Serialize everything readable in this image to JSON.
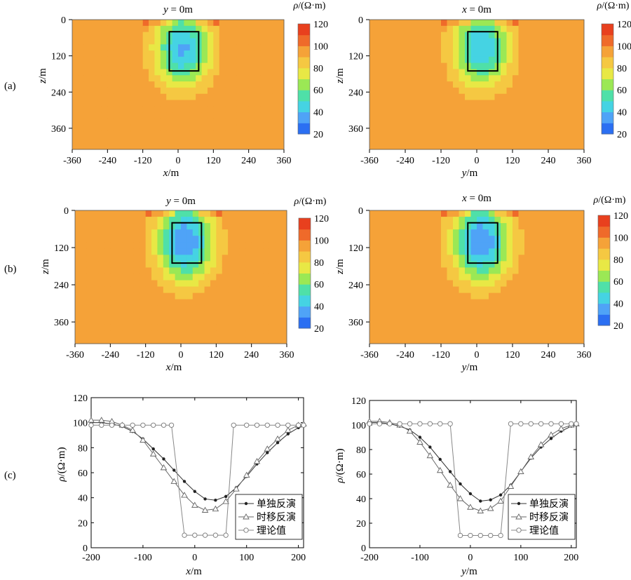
{
  "labels": {
    "row_a": "(a)",
    "row_b": "(b)",
    "row_c": "(c)"
  },
  "colormap": {
    "label": "ρ/(Ω·m)",
    "ticks": [
      "120",
      "100",
      "80",
      "60",
      "40",
      "20"
    ],
    "range": [
      20,
      120
    ],
    "colors": [
      "#2b6ff2",
      "#4fa3f7",
      "#45d3e3",
      "#4fe0a8",
      "#9be855",
      "#e8e845",
      "#f5c842",
      "#f5a238",
      "#ef6a2a",
      "#e8401e"
    ]
  },
  "chart_data": [
    {
      "id": "a-left",
      "type": "heatmap",
      "title": "y = 0m",
      "xlabel": "x/m",
      "ylabel": "z/m",
      "xticks": [
        "-360",
        "-240",
        "-120",
        "0",
        "120",
        "240",
        "360"
      ],
      "yticks": [
        "0",
        "120",
        "240",
        "360"
      ],
      "xlim": [
        -360,
        360
      ],
      "ylim": [
        0,
        430
      ],
      "anomaly": {
        "center": [
          15,
          95
        ],
        "min_rho": 38,
        "background_rho": 100
      },
      "box": {
        "x": [
          -30,
          70
        ],
        "z": [
          40,
          170
        ]
      }
    },
    {
      "id": "a-right",
      "type": "heatmap",
      "title": "x = 0m",
      "xlabel": "y/m",
      "ylabel": "z/m",
      "xticks": [
        "-360",
        "-240",
        "-120",
        "0",
        "120",
        "240",
        "360"
      ],
      "yticks": [
        "0",
        "120",
        "240",
        "360"
      ],
      "xlim": [
        -360,
        360
      ],
      "ylim": [
        0,
        430
      ],
      "anomaly": {
        "center": [
          15,
          95
        ],
        "min_rho": 40,
        "background_rho": 100
      },
      "box": {
        "x": [
          -30,
          70
        ],
        "z": [
          40,
          170
        ]
      }
    },
    {
      "id": "b-left",
      "type": "heatmap",
      "title": "y = 0m",
      "xlabel": "x/m",
      "ylabel": "z/m",
      "xticks": [
        "-360",
        "-240",
        "-120",
        "0",
        "120",
        "240",
        "360"
      ],
      "yticks": [
        "0",
        "120",
        "240",
        "360"
      ],
      "xlim": [
        -360,
        360
      ],
      "ylim": [
        0,
        430
      ],
      "anomaly": {
        "center": [
          15,
          100
        ],
        "min_rho": 30,
        "background_rho": 100
      },
      "box": {
        "x": [
          -30,
          70
        ],
        "z": [
          40,
          170
        ]
      }
    },
    {
      "id": "b-right",
      "type": "heatmap",
      "title": "x = 0m",
      "xlabel": "y/m",
      "ylabel": "z/m",
      "xticks": [
        "-360",
        "-240",
        "-120",
        "0",
        "120",
        "240",
        "360"
      ],
      "yticks": [
        "0",
        "120",
        "240",
        "360"
      ],
      "xlim": [
        -360,
        360
      ],
      "ylim": [
        0,
        430
      ],
      "anomaly": {
        "center": [
          15,
          100
        ],
        "min_rho": 30,
        "background_rho": 100
      },
      "box": {
        "x": [
          -30,
          70
        ],
        "z": [
          40,
          170
        ]
      }
    },
    {
      "id": "c-left",
      "type": "line",
      "xlabel": "x/m",
      "ylabel": "ρ/(Ω·m)",
      "xlim": [
        -200,
        210
      ],
      "ylim": [
        0,
        120
      ],
      "xticks": [
        "-200",
        "-100",
        "0",
        "100",
        "200"
      ],
      "yticks": [
        "0",
        "20",
        "40",
        "60",
        "80",
        "100",
        "120"
      ],
      "series": [
        {
          "name": "单独反演",
          "marker": "dot",
          "x": [
            -200,
            -180,
            -160,
            -140,
            -120,
            -100,
            -80,
            -60,
            -40,
            -20,
            0,
            20,
            40,
            60,
            80,
            100,
            120,
            140,
            160,
            180,
            200,
            210
          ],
          "y": [
            100,
            100,
            99,
            97,
            93,
            87,
            79,
            71,
            62,
            53,
            45,
            39,
            38,
            41,
            48,
            57,
            67,
            76,
            84,
            91,
            96,
            98
          ]
        },
        {
          "name": "时移反演",
          "marker": "triangle",
          "x": [
            -200,
            -180,
            -160,
            -140,
            -120,
            -100,
            -80,
            -60,
            -40,
            -20,
            0,
            20,
            40,
            60,
            80,
            100,
            120,
            140,
            160,
            180,
            200,
            210
          ],
          "y": [
            102,
            102,
            101,
            98,
            94,
            86,
            75,
            64,
            53,
            42,
            34,
            30,
            31,
            37,
            47,
            58,
            69,
            79,
            87,
            94,
            98,
            99
          ]
        },
        {
          "name": "理论值",
          "marker": "circle",
          "x": [
            -200,
            -180,
            -160,
            -140,
            -120,
            -100,
            -80,
            -60,
            -45,
            -20,
            0,
            20,
            40,
            60,
            75,
            100,
            120,
            140,
            160,
            180,
            200,
            210
          ],
          "y": [
            98,
            98,
            98,
            98,
            98,
            98,
            98,
            98,
            98,
            10,
            10,
            10,
            10,
            10,
            98,
            98,
            98,
            98,
            98,
            98,
            98,
            98
          ]
        }
      ]
    },
    {
      "id": "c-right",
      "type": "line",
      "xlabel": "y/m",
      "ylabel": "ρ/(Ω·m)",
      "xlim": [
        -200,
        210
      ],
      "ylim": [
        0,
        120
      ],
      "xticks": [
        "-200",
        "-100",
        "0",
        "100",
        "200"
      ],
      "yticks": [
        "0",
        "20",
        "40",
        "60",
        "80",
        "100",
        "120"
      ],
      "series": [
        {
          "name": "单独反演",
          "marker": "dot",
          "x": [
            -200,
            -180,
            -160,
            -140,
            -120,
            -100,
            -80,
            -60,
            -40,
            -20,
            0,
            20,
            40,
            60,
            80,
            100,
            120,
            140,
            160,
            180,
            200,
            210
          ],
          "y": [
            102,
            102,
            101,
            99,
            96,
            90,
            82,
            72,
            62,
            52,
            44,
            38,
            39,
            43,
            51,
            62,
            73,
            82,
            89,
            95,
            99,
            100
          ]
        },
        {
          "name": "时移反演",
          "marker": "triangle",
          "x": [
            -200,
            -180,
            -160,
            -140,
            -120,
            -100,
            -80,
            -60,
            -40,
            -20,
            0,
            20,
            40,
            60,
            80,
            100,
            120,
            140,
            160,
            180,
            200,
            210
          ],
          "y": [
            103,
            103,
            102,
            100,
            95,
            86,
            75,
            63,
            51,
            40,
            33,
            30,
            32,
            38,
            50,
            62,
            74,
            84,
            92,
            97,
            100,
            101
          ]
        },
        {
          "name": "理论值",
          "marker": "circle",
          "x": [
            -200,
            -180,
            -160,
            -140,
            -120,
            -100,
            -80,
            -60,
            -40,
            -20,
            0,
            20,
            40,
            60,
            80,
            100,
            120,
            140,
            160,
            180,
            200,
            210
          ],
          "y": [
            101,
            101,
            101,
            101,
            101,
            101,
            101,
            101,
            101,
            10,
            10,
            10,
            10,
            10,
            101,
            101,
            101,
            101,
            101,
            101,
            101,
            101
          ]
        }
      ]
    }
  ]
}
